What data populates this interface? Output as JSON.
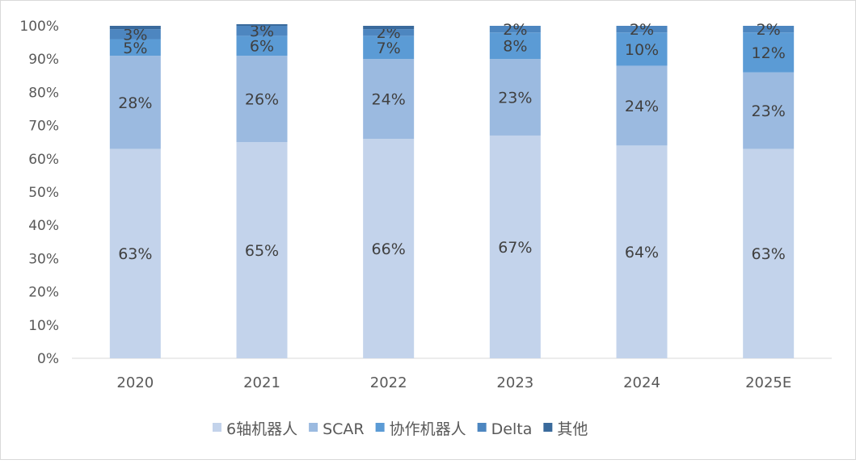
{
  "chart_data": {
    "type": "bar",
    "stacked": true,
    "title": "",
    "xlabel": "",
    "ylabel": "",
    "ylim": [
      0,
      100
    ],
    "yticks": [
      "0%",
      "10%",
      "20%",
      "30%",
      "40%",
      "50%",
      "60%",
      "70%",
      "80%",
      "90%",
      "100%"
    ],
    "categories": [
      "2020",
      "2021",
      "2022",
      "2023",
      "2024",
      "2025E"
    ],
    "legend_position": "bottom",
    "series": [
      {
        "name": "6轴机器人",
        "color": "#c3d3eb",
        "values": [
          63,
          65,
          66,
          67,
          64,
          63
        ],
        "labels": [
          "63%",
          "65%",
          "66%",
          "67%",
          "64%",
          "63%"
        ]
      },
      {
        "name": "SCAR",
        "color": "#9bbae0",
        "values": [
          28,
          26,
          24,
          23,
          24,
          23
        ],
        "labels": [
          "28%",
          "26%",
          "24%",
          "23%",
          "24%",
          "23%"
        ]
      },
      {
        "name": "协作机器人",
        "color": "#5b9bd5",
        "values": [
          5,
          6,
          7,
          8,
          10,
          12
        ],
        "labels": [
          "5%",
          "6%",
          "7%",
          "8%",
          "10%",
          "12%"
        ]
      },
      {
        "name": "Delta",
        "color": "#4d86c0",
        "values": [
          3,
          3,
          2,
          2,
          2,
          2
        ],
        "labels": [
          "3%",
          "3%",
          "2%",
          "2%",
          "2%",
          "2%"
        ]
      },
      {
        "name": "其他",
        "color": "#3a6a9c",
        "values": [
          1,
          0.5,
          1,
          0,
          0,
          0
        ],
        "labels": null
      }
    ]
  }
}
